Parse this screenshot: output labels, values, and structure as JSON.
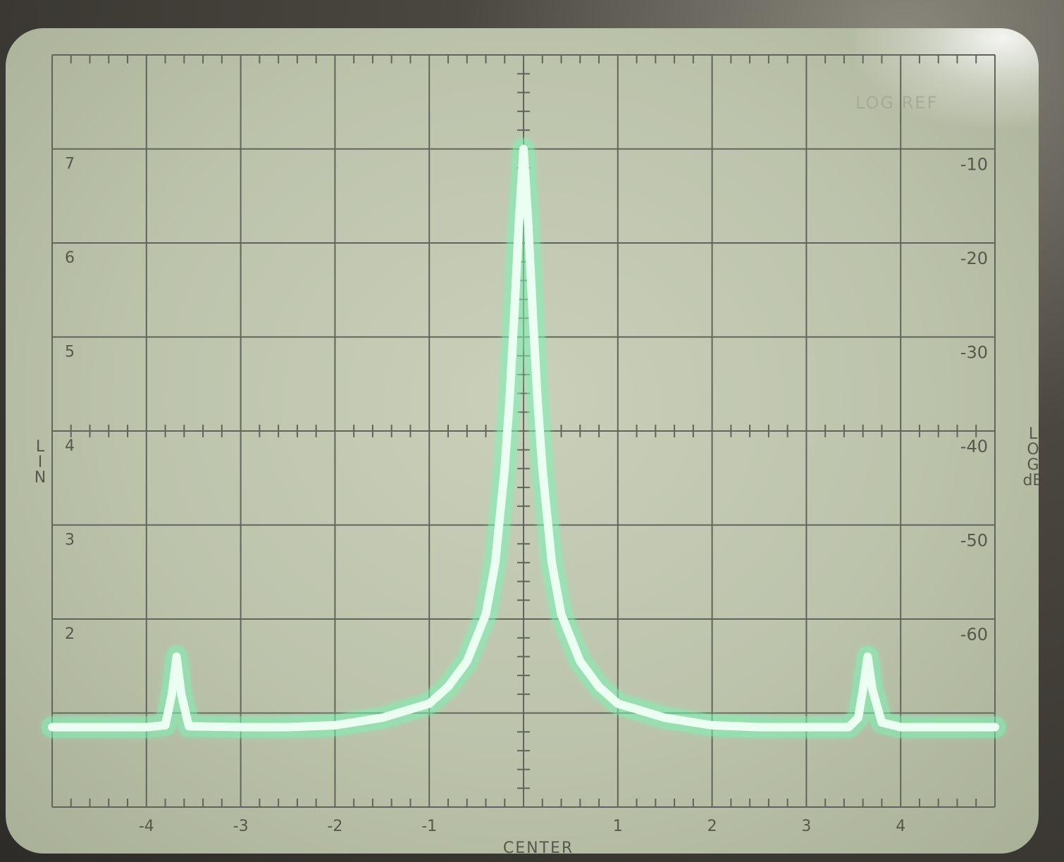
{
  "chart_data": {
    "type": "line",
    "title": "",
    "xlabel": "CENTER FREQUENCY",
    "x_tick_labels": [
      "-4",
      "-3",
      "-2",
      "-1",
      "1",
      "2",
      "3",
      "4"
    ],
    "xlim": [
      -5,
      5
    ],
    "left_axis": {
      "label": "LIN",
      "tick_labels": [
        "7",
        "6",
        "5",
        "4",
        "3",
        "2"
      ],
      "ylim": [
        0,
        8
      ]
    },
    "right_axis": {
      "label": "LOG dB",
      "tick_labels": [
        "-10",
        "-20",
        "-30",
        "-40",
        "-50",
        "-60"
      ]
    },
    "corner_label": "LOG REF",
    "grid": true,
    "trace_color": "#7df5b4",
    "series": [
      {
        "x": [
          -5.0,
          -4.5,
          -4.0,
          -3.8,
          -3.73,
          -3.68,
          -3.63,
          -3.55,
          -3.0,
          -2.5,
          -2.0,
          -1.5,
          -1.0,
          -0.8,
          -0.6,
          -0.4,
          -0.3,
          -0.2,
          -0.15,
          -0.1,
          -0.05,
          0.0,
          0.05,
          0.1,
          0.15,
          0.2,
          0.3,
          0.4,
          0.6,
          0.8,
          1.0,
          1.5,
          2.0,
          2.5,
          3.0,
          3.45,
          3.55,
          3.6,
          3.65,
          3.7,
          3.8,
          4.0,
          4.5,
          5.0
        ],
        "y": [
          0.85,
          0.85,
          0.85,
          0.87,
          1.2,
          1.6,
          1.2,
          0.86,
          0.85,
          0.85,
          0.87,
          0.95,
          1.1,
          1.28,
          1.55,
          2.05,
          2.6,
          3.6,
          4.3,
          5.2,
          6.2,
          7.0,
          6.2,
          5.2,
          4.3,
          3.6,
          2.6,
          2.05,
          1.55,
          1.28,
          1.1,
          0.95,
          0.87,
          0.85,
          0.85,
          0.85,
          0.95,
          1.25,
          1.6,
          1.25,
          0.9,
          0.85,
          0.85,
          0.85
        ]
      }
    ]
  }
}
